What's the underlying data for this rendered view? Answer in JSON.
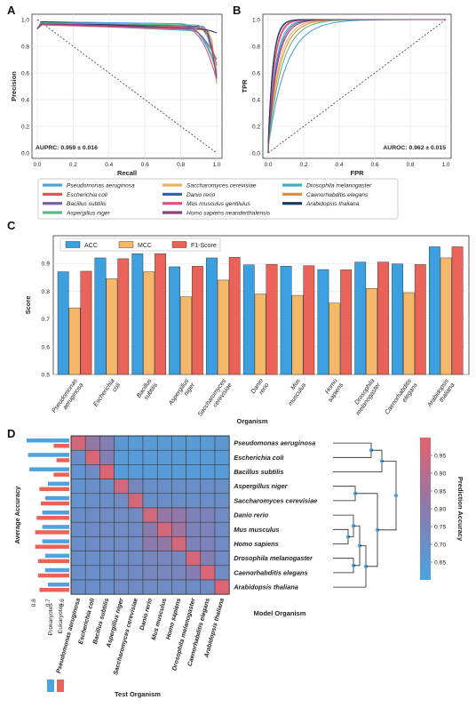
{
  "panel_labels": [
    "A",
    "B",
    "C",
    "D"
  ],
  "colors": {
    "Pseudomonas aeruginosa": "#4ba3df",
    "Escherichia coli": "#e05555",
    "Bacillus subtilis": "#7b5ea7",
    "Aspergillus niger": "#5cb884",
    "Saccharomyces cerevisiae": "#f2b05e",
    "Danio rerio": "#3a5fb0",
    "Mus musculus gentilulus": "#e0507a",
    "Homo sapiens neanderthalensis": "#8a3f78",
    "Drosophila melanogaster": "#3ab0c8",
    "Caenorhabditis elegans": "#e68a3c",
    "Arabidopsis thaliana": "#1f3a5f",
    "ACC": "#3b9fe0",
    "MCC": "#f5b86a",
    "F1-Score": "#ea6358"
  },
  "legend_organisms": [
    "Pseudomonas aeruginosa",
    "Saccharomyces cerevisiae",
    "Drosophila melanogaster",
    "Escherichia coli",
    "Danio rerio",
    "Caenorhabditis elegans",
    "Bacillus subtilis",
    "Mus musculus gentilulus",
    "Arabidopsis thaliana",
    "Aspergillus niger",
    "Homo sapiens neanderthalensis"
  ],
  "chart_data": [
    {
      "panel": "A",
      "type": "line",
      "xlabel": "Recall",
      "ylabel": "Precision",
      "xlim": [
        0.0,
        1.0
      ],
      "ylim": [
        0.0,
        1.0
      ],
      "xticks": [
        "0.0",
        "0.2",
        "0.4",
        "0.6",
        "0.8",
        "1.0"
      ],
      "yticks": [
        "0.0",
        "0.2",
        "0.4",
        "0.6",
        "0.8",
        "1.0"
      ],
      "annotation": "AUPRC: 0.959 ± 0.016",
      "baseline": {
        "x": [
          0,
          1
        ],
        "y": [
          1,
          0
        ]
      },
      "series_end_precision": {
        "Pseudomonas aeruginosa": 0.62,
        "Escherichia coli": 0.66,
        "Bacillus subtilis": 0.7,
        "Aspergillus niger": 0.6,
        "Saccharomyces cerevisiae": 0.64,
        "Danio rerio": 0.58,
        "Mus musculus gentilulus": 0.55,
        "Homo sapiens neanderthalensis": 0.56,
        "Drosophila melanogaster": 0.6,
        "Caenorhabditis elegans": 0.52,
        "Arabidopsis thaliana": 0.9
      }
    },
    {
      "panel": "B",
      "type": "line",
      "xlabel": "FPR",
      "ylabel": "TPR",
      "xlim": [
        0.0,
        1.0
      ],
      "ylim": [
        0.0,
        1.0
      ],
      "xticks": [
        "0.0",
        "0.2",
        "0.4",
        "0.6",
        "0.8",
        "1.0"
      ],
      "yticks": [
        "0.0",
        "0.2",
        "0.4",
        "0.6",
        "0.8",
        "1.0"
      ],
      "annotation": "AUROC: 0.962 ± 0.015",
      "baseline": {
        "x": [
          0,
          1
        ],
        "y": [
          0,
          1
        ]
      }
    },
    {
      "panel": "C",
      "type": "bar",
      "xlabel": "Organism",
      "ylabel": "Score",
      "ylim": [
        0.5,
        1.0
      ],
      "yticks": [
        "0.5",
        "0.6",
        "0.7",
        "0.8",
        "0.9"
      ],
      "categories": [
        "Pseudomonas\naeruginosa",
        "Escherichia\ncoli",
        "Bacillus\nsubtilis",
        "Aspergillus\nniger",
        "Saccharomyces\ncerevisiae",
        "Danio\nrerio",
        "Mus\nmusculus",
        "Homo\nsapiens",
        "Drosophila\nmelanogaster",
        "Caenorhabditis\nelegans",
        "Arabidopsis\nthaliana"
      ],
      "series": [
        {
          "name": "ACC",
          "values": [
            0.87,
            0.92,
            0.935,
            0.888,
            0.92,
            0.895,
            0.89,
            0.878,
            0.905,
            0.898,
            0.96
          ]
        },
        {
          "name": "MCC",
          "values": [
            0.74,
            0.845,
            0.87,
            0.78,
            0.84,
            0.79,
            0.785,
            0.757,
            0.81,
            0.795,
            0.92
          ]
        },
        {
          "name": "F1-Score",
          "values": [
            0.872,
            0.917,
            0.935,
            0.89,
            0.922,
            0.897,
            0.892,
            0.877,
            0.905,
            0.896,
            0.96
          ]
        }
      ]
    },
    {
      "panel": "D",
      "type": "heatmap",
      "xlabel": "Test Organism",
      "ylabel": "Model Organism",
      "side_label": "Average Accuracy",
      "colorbar_label": "Prediction Accuracy",
      "colorbar_ticks": [
        "0.95",
        "0.90",
        "0.85",
        "0.80",
        "0.75",
        "0.70",
        "0.65"
      ],
      "colorbar_range": [
        0.6,
        1.0
      ],
      "rows": [
        "Pseudomonas aeruginosa",
        "Escherichia coli",
        "Bacillus subtilis",
        "Aspergillus niger",
        "Saccharomyces cerevisiae",
        "Danio rerio",
        "Mus musculus",
        "Homo sapiens",
        "Drosophila melanogaster",
        "Caenorhabditis elegans",
        "Arabidopsis thaliana"
      ],
      "columns": [
        "Pseudomonas aeruginosa",
        "Escherichia coli",
        "Bacillus subtilis",
        "Aspergillus niger",
        "Saccharomyces cerevisiae",
        "Danio rerio",
        "Mus musculus",
        "Homo sapiens",
        "Drosophila melanogaster",
        "Caenorhabditis elegans",
        "Arabidopsis thaliana"
      ],
      "values": [
        [
          0.96,
          0.82,
          0.78,
          0.66,
          0.65,
          0.65,
          0.65,
          0.65,
          0.65,
          0.65,
          0.66
        ],
        [
          0.7,
          0.97,
          0.78,
          0.65,
          0.64,
          0.65,
          0.65,
          0.65,
          0.64,
          0.65,
          0.65
        ],
        [
          0.68,
          0.72,
          0.98,
          0.64,
          0.64,
          0.64,
          0.64,
          0.64,
          0.64,
          0.64,
          0.64
        ],
        [
          0.68,
          0.7,
          0.7,
          0.95,
          0.74,
          0.7,
          0.7,
          0.7,
          0.7,
          0.7,
          0.7
        ],
        [
          0.68,
          0.7,
          0.7,
          0.72,
          0.96,
          0.7,
          0.7,
          0.7,
          0.7,
          0.7,
          0.7
        ],
        [
          0.7,
          0.72,
          0.72,
          0.72,
          0.72,
          0.95,
          0.82,
          0.82,
          0.76,
          0.76,
          0.72
        ],
        [
          0.7,
          0.72,
          0.72,
          0.72,
          0.72,
          0.8,
          0.96,
          0.84,
          0.76,
          0.76,
          0.72
        ],
        [
          0.7,
          0.72,
          0.72,
          0.72,
          0.72,
          0.8,
          0.82,
          0.96,
          0.76,
          0.76,
          0.72
        ],
        [
          0.7,
          0.7,
          0.7,
          0.72,
          0.72,
          0.74,
          0.74,
          0.74,
          0.96,
          0.78,
          0.72
        ],
        [
          0.7,
          0.7,
          0.7,
          0.72,
          0.72,
          0.74,
          0.74,
          0.74,
          0.78,
          0.97,
          0.72
        ],
        [
          0.7,
          0.7,
          0.7,
          0.72,
          0.72,
          0.72,
          0.72,
          0.72,
          0.72,
          0.72,
          0.98
        ]
      ],
      "avg_accuracy": {
        "xticks": [
          "0.8",
          "0.7",
          "0.6"
        ],
        "legend": [
          "Prokaryotes",
          "Eukaryotes"
        ],
        "prokaryotes": [
          0.85,
          0.84,
          0.83,
          0.7,
          0.72,
          0.74,
          0.74,
          0.74,
          0.72,
          0.72,
          0.7
        ],
        "eukaryotes": [
          0.66,
          0.64,
          0.66,
          0.76,
          0.75,
          0.78,
          0.79,
          0.79,
          0.77,
          0.77,
          0.76
        ]
      }
    }
  ]
}
